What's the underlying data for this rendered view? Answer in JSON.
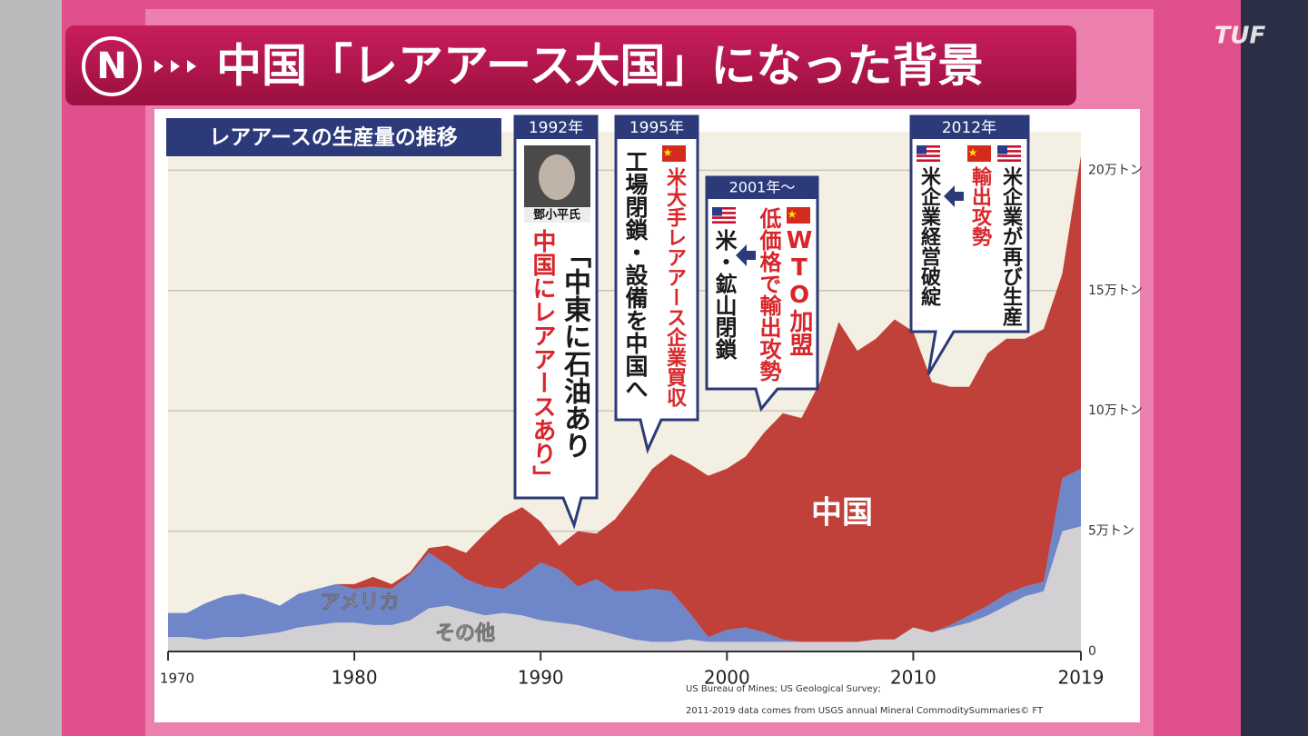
{
  "chart_data": {
    "type": "stacked_area",
    "title": "中国「レアアース大国」になった背景",
    "subtitle": "レアアースの生産量の推移",
    "logo": "TUF",
    "source": [
      "US Bureau of Mines; US Geological Survey;",
      "2011-2019 data comes from USGS annual Mineral CommoditySummaries© FT"
    ],
    "x": [
      1970,
      1971,
      1972,
      1973,
      1974,
      1975,
      1976,
      1977,
      1978,
      1979,
      1980,
      1981,
      1982,
      1983,
      1984,
      1985,
      1986,
      1987,
      1988,
      1989,
      1990,
      1991,
      1992,
      1993,
      1994,
      1995,
      1996,
      1997,
      1998,
      1999,
      2000,
      2001,
      2002,
      2003,
      2004,
      2005,
      2006,
      2007,
      2008,
      2009,
      2010,
      2011,
      2012,
      2013,
      2014,
      2015,
      2016,
      2017,
      2018,
      2019
    ],
    "series": [
      {
        "name": "その他",
        "color": "#d3d0d3",
        "values": [
          0.6,
          0.6,
          0.5,
          0.6,
          0.6,
          0.7,
          0.8,
          1.0,
          1.1,
          1.2,
          1.2,
          1.1,
          1.1,
          1.3,
          1.8,
          1.9,
          1.7,
          1.5,
          1.6,
          1.5,
          1.3,
          1.2,
          1.1,
          0.9,
          0.7,
          0.5,
          0.4,
          0.4,
          0.5,
          0.4,
          0.4,
          0.4,
          0.4,
          0.4,
          0.4,
          0.4,
          0.4,
          0.4,
          0.5,
          0.5,
          1.0,
          0.8,
          1.0,
          1.2,
          1.5,
          1.9,
          2.3,
          2.5,
          5.0,
          5.2
        ]
      },
      {
        "name": "アメリカ",
        "color": "#6f86c9",
        "values": [
          1.0,
          1.0,
          1.5,
          1.7,
          1.8,
          1.5,
          1.1,
          1.4,
          1.5,
          1.6,
          1.4,
          1.6,
          1.5,
          1.9,
          2.3,
          1.7,
          1.3,
          1.2,
          1.0,
          1.6,
          2.4,
          2.2,
          1.6,
          2.1,
          1.8,
          2.0,
          2.2,
          2.1,
          1.1,
          0.2,
          0.5,
          0.6,
          0.4,
          0.1,
          0,
          0,
          0,
          0,
          0,
          0,
          0,
          0,
          0.1,
          0.3,
          0.4,
          0.5,
          0.4,
          0.4,
          2.2,
          2.4
        ]
      },
      {
        "name": "中国",
        "color": "#c0403a",
        "values": [
          0,
          0,
          0,
          0,
          0,
          0,
          0,
          0,
          0,
          0,
          0.2,
          0.4,
          0.2,
          0.1,
          0.2,
          0.8,
          1.1,
          2.2,
          3.0,
          2.9,
          1.7,
          1.0,
          2.3,
          1.9,
          3.0,
          4.0,
          5.0,
          5.7,
          6.2,
          6.7,
          6.7,
          7.1,
          8.3,
          9.4,
          9.3,
          10.8,
          13.3,
          12.1,
          12.5,
          13.3,
          12.3,
          10.4,
          9.9,
          9.5,
          10.5,
          10.6,
          10.3,
          10.5,
          8.5,
          13.0
        ]
      }
    ],
    "xlim": [
      1970,
      2019
    ],
    "xticks": [
      1970,
      1980,
      1990,
      2000,
      2010,
      2019
    ],
    "ylim": [
      0,
      21.6
    ],
    "yticks": [
      0,
      {
        "value": 5,
        "label": "5万トン"
      },
      {
        "value": 10,
        "label": "10万トン"
      },
      {
        "value": 15,
        "label": "15万トン"
      },
      {
        "value": 20,
        "label": "20万トン"
      }
    ],
    "grid": true,
    "annotations": [
      {
        "label": "1992年",
        "caption": "鄧小平氏",
        "lines": [
          "「中東に石油あり",
          "中国にレアアースあり」"
        ]
      },
      {
        "label": "1995年",
        "lines": [
          "米大手レアアース企業買収",
          "工場閉鎖・設備を中国へ"
        ]
      },
      {
        "label": "2001年～",
        "lines": [
          "WTO加盟",
          "低価格で輸出攻勢",
          "米・鉱山閉鎖"
        ]
      },
      {
        "label": "2012年",
        "lines": [
          "米企業が再び生産",
          "輸出攻勢",
          "米企業経営破綻"
        ]
      }
    ]
  }
}
